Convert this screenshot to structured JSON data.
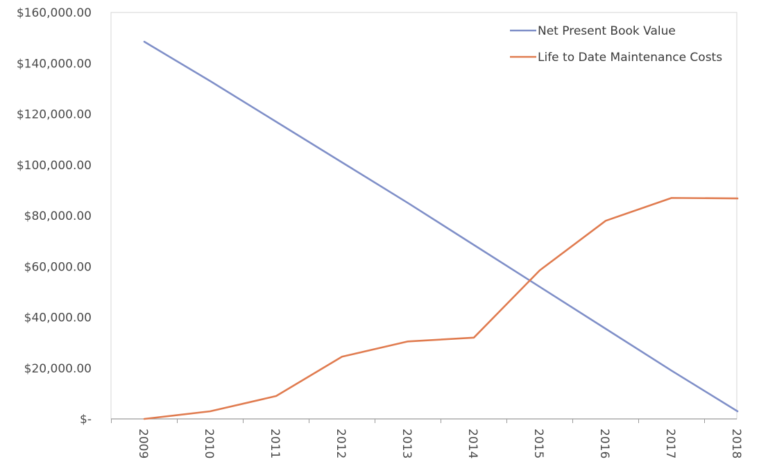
{
  "chart_data": {
    "type": "line",
    "x": [
      "2009",
      "2010",
      "2011",
      "2012",
      "2013",
      "2014",
      "2015",
      "2016",
      "2017",
      "2018"
    ],
    "series": [
      {
        "name": "Net Present Book Value",
        "color": "#7f8fc8",
        "values": [
          148500,
          133000,
          117000,
          101000,
          85000,
          68500,
          52000,
          35500,
          19000,
          3000
        ]
      },
      {
        "name": "Life to Date Maintenance Costs",
        "color": "#e07b4f",
        "values": [
          0,
          3000,
          9000,
          24500,
          30500,
          32000,
          58500,
          78000,
          87000,
          86800
        ]
      }
    ],
    "y_ticks": [
      0,
      20000,
      40000,
      60000,
      80000,
      100000,
      120000,
      140000,
      160000
    ],
    "y_tick_labels": [
      "$-",
      "$20,000.00",
      "$40,000.00",
      "$60,000.00",
      "$80,000.00",
      "$100,000.00",
      "$120,000.00",
      "$140,000.00",
      "$160,000.00"
    ],
    "ylim": [
      0,
      160000
    ],
    "xlabel": "",
    "ylabel": "",
    "grid": false,
    "legend_position": "top-right"
  }
}
